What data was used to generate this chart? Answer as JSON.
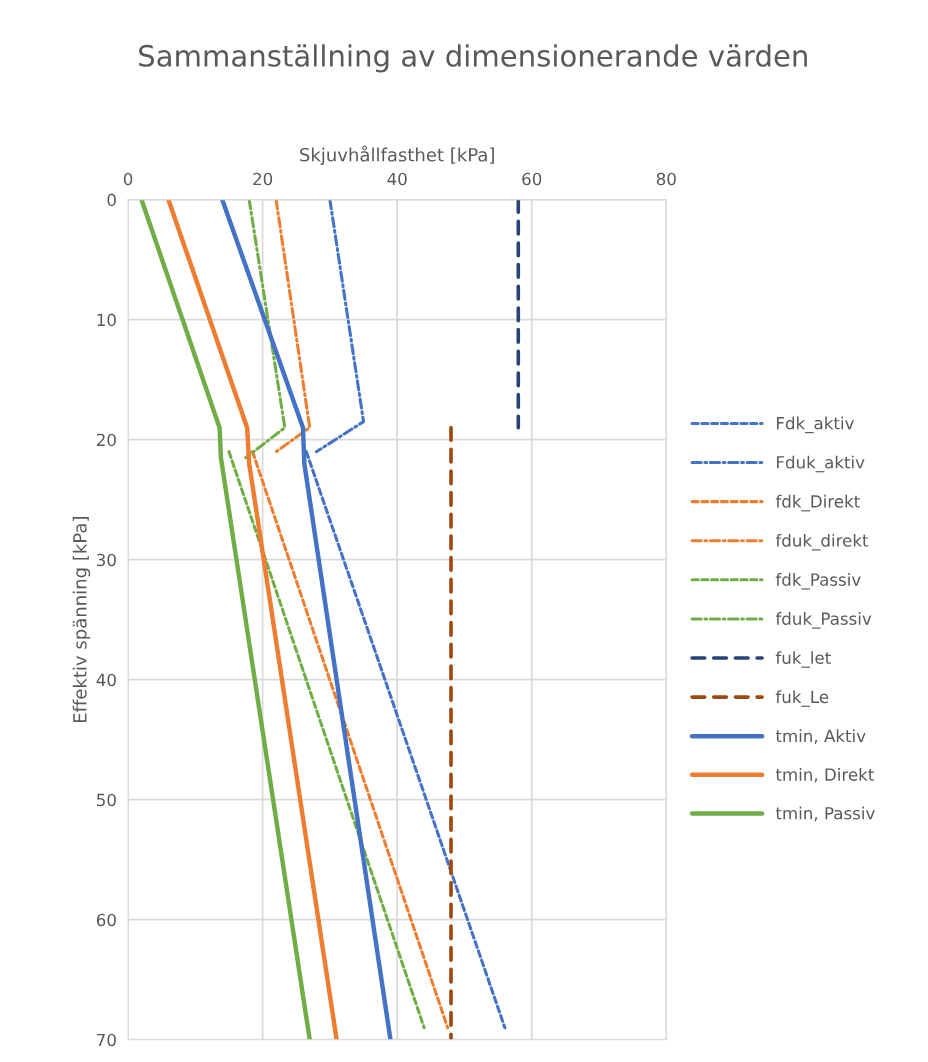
{
  "chart_data": {
    "type": "line",
    "title": "Sammanställning av dimensionerande värden",
    "xlabel": "Skjuvhållfasthet [kPa]",
    "ylabel": "Effektiv spänning [kPa]",
    "xlim": [
      0,
      80
    ],
    "xticks": [
      0,
      20,
      40,
      60,
      80
    ],
    "ylim": [
      70,
      0
    ],
    "yticks": [
      0,
      10,
      20,
      30,
      40,
      50,
      60,
      70
    ],
    "grid": true,
    "legend": "right",
    "marker": "none",
    "series": [
      {
        "name": "Fdk_aktiv",
        "color": "#4472c4",
        "line_style": "dashed",
        "x": [
          26.5,
          56
        ],
        "values": [
          21,
          69
        ]
      },
      {
        "name": "Fduk_aktiv",
        "color": "#4472c4",
        "line_style": "dash_dot",
        "x": [
          30,
          35,
          28
        ],
        "values": [
          0,
          18.5,
          21
        ]
      },
      {
        "name": "fdk_Direkt",
        "color": "#ed7d31",
        "line_style": "dashed",
        "x": [
          18.5,
          47.5
        ],
        "values": [
          21,
          69
        ]
      },
      {
        "name": "fduk_direkt",
        "color": "#ed7d31",
        "line_style": "dash_dot",
        "x": [
          22,
          27,
          22
        ],
        "values": [
          0,
          19,
          21
        ]
      },
      {
        "name": "fdk_Passiv",
        "color": "#70ad47",
        "line_style": "dashed",
        "x": [
          15,
          44
        ],
        "values": [
          21,
          69
        ]
      },
      {
        "name": "fduk_Passiv",
        "color": "#70ad47",
        "line_style": "dash_dot",
        "x": [
          18,
          23.3,
          17.5
        ],
        "values": [
          0,
          19,
          21.5
        ]
      },
      {
        "name": "fuk_let",
        "color": "#264478",
        "line_style": "long_dashed",
        "x": [
          58,
          58
        ],
        "values": [
          0,
          19
        ]
      },
      {
        "name": "fuk_Le",
        "color": "#9e480e",
        "line_style": "long_dashed",
        "x": [
          48,
          48
        ],
        "values": [
          19,
          70
        ]
      },
      {
        "name": "tmin, Aktiv",
        "color": "#4472c4",
        "line_style": "solid",
        "x": [
          14,
          26,
          26.2,
          39
        ],
        "values": [
          0,
          19,
          22,
          70
        ]
      },
      {
        "name": "tmin, Direkt",
        "color": "#ed7d31",
        "line_style": "solid",
        "x": [
          6,
          17.7,
          18,
          31
        ],
        "values": [
          0,
          19,
          22,
          70
        ]
      },
      {
        "name": "tmin, Passiv",
        "color": "#70ad47",
        "line_style": "solid",
        "x": [
          2,
          13.6,
          13.8,
          27
        ],
        "values": [
          0,
          19,
          21.5,
          70
        ]
      }
    ]
  }
}
